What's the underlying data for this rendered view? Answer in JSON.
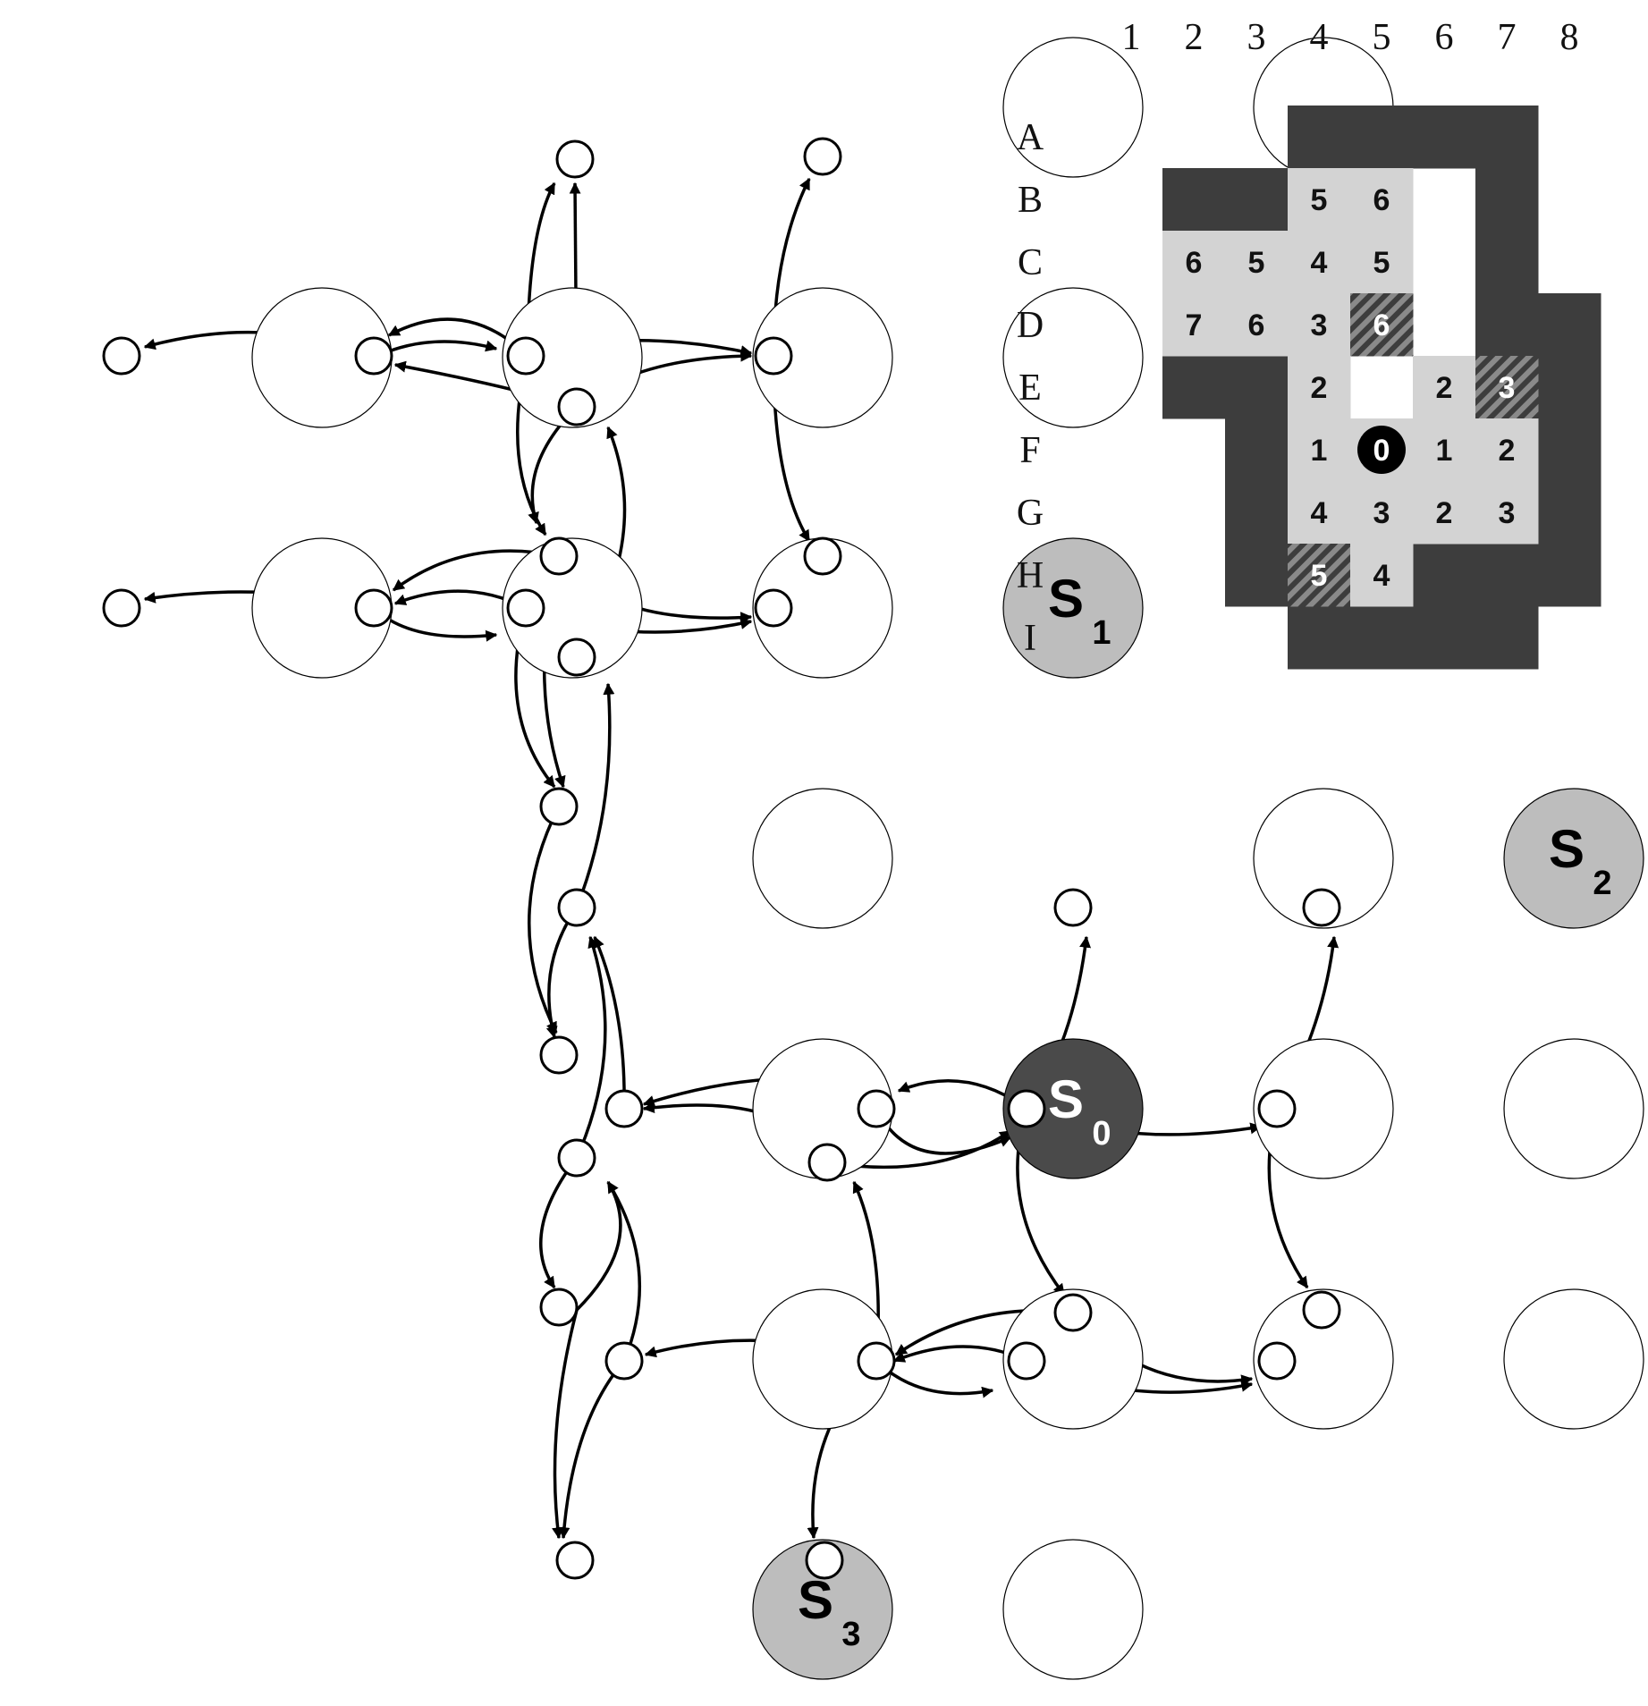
{
  "graph": {
    "states": [
      {
        "row": "A",
        "col": 4,
        "fill": "none"
      },
      {
        "row": "A",
        "col": 5,
        "fill": "none"
      },
      {
        "row": "B",
        "col": 1,
        "fill": "none"
      },
      {
        "row": "B",
        "col": 2,
        "fill": "none"
      },
      {
        "row": "B",
        "col": 3,
        "fill": "none"
      },
      {
        "row": "B",
        "col": 4,
        "fill": "none"
      },
      {
        "row": "C",
        "col": 1,
        "fill": "none"
      },
      {
        "row": "C",
        "col": 2,
        "fill": "none"
      },
      {
        "row": "C",
        "col": 3,
        "fill": "none"
      },
      {
        "row": "C",
        "col": 4,
        "fill": "#bdbdbd",
        "label": "S",
        "sub": "1",
        "labelColor": "#000000"
      },
      {
        "row": "D",
        "col": 3,
        "fill": "none"
      },
      {
        "row": "D",
        "col": 5,
        "fill": "none"
      },
      {
        "row": "D",
        "col": 6,
        "fill": "#bdbdbd",
        "label": "S",
        "sub": "2",
        "labelColor": "#000000"
      },
      {
        "row": "E",
        "col": 3,
        "fill": "none"
      },
      {
        "row": "E",
        "col": 4,
        "fill": "#4a4a4a",
        "label": "S",
        "sub": "0",
        "labelColor": "#ffffff"
      },
      {
        "row": "E",
        "col": 5,
        "fill": "none"
      },
      {
        "row": "E",
        "col": 6,
        "fill": "none"
      },
      {
        "row": "F",
        "col": 3,
        "fill": "none"
      },
      {
        "row": "F",
        "col": 4,
        "fill": "none"
      },
      {
        "row": "F",
        "col": 5,
        "fill": "none"
      },
      {
        "row": "F",
        "col": 6,
        "fill": "none"
      },
      {
        "row": "G",
        "col": 3,
        "fill": "#bdbdbd",
        "label": "S",
        "sub": "3",
        "labelColor": "#000000"
      },
      {
        "row": "G",
        "col": 4,
        "fill": "none"
      }
    ]
  },
  "map": {
    "col_labels": [
      "1",
      "2",
      "3",
      "4",
      "5",
      "6",
      "7",
      "8"
    ],
    "row_labels": [
      "A",
      "B",
      "C",
      "D",
      "E",
      "F",
      "G",
      "H",
      "I"
    ],
    "colors": {
      "wall": "#3d3d3d",
      "floor": "#d3d3d3",
      "text": "#111111"
    },
    "walls": [
      "A4",
      "A5",
      "A6",
      "A7",
      "B2",
      "B3",
      "B4",
      "B7",
      "C2",
      "C7",
      "D2",
      "D7",
      "D8",
      "E2",
      "E3",
      "E4",
      "E6",
      "E8",
      "F3",
      "F8",
      "G3",
      "G8",
      "H3",
      "H6",
      "H7",
      "H8",
      "I4",
      "I5",
      "I6",
      "I7"
    ],
    "cells": [
      {
        "cell": "B4",
        "value": "5"
      },
      {
        "cell": "B5",
        "value": "6"
      },
      {
        "cell": "C2",
        "value": "6"
      },
      {
        "cell": "C3",
        "value": "5"
      },
      {
        "cell": "C4",
        "value": "4"
      },
      {
        "cell": "C5",
        "value": "5"
      },
      {
        "cell": "D2",
        "value": "7"
      },
      {
        "cell": "D3",
        "value": "6"
      },
      {
        "cell": "D4",
        "value": "3"
      },
      {
        "cell": "D5",
        "value": "6",
        "style": "hatched"
      },
      {
        "cell": "E4",
        "value": "2"
      },
      {
        "cell": "E6",
        "value": "2"
      },
      {
        "cell": "E7",
        "value": "3",
        "style": "hatched"
      },
      {
        "cell": "F4",
        "value": "1"
      },
      {
        "cell": "F5",
        "value": "0",
        "style": "agent"
      },
      {
        "cell": "F6",
        "value": "1"
      },
      {
        "cell": "F7",
        "value": "2"
      },
      {
        "cell": "G4",
        "value": "4"
      },
      {
        "cell": "G5",
        "value": "3"
      },
      {
        "cell": "G6",
        "value": "2"
      },
      {
        "cell": "G7",
        "value": "3"
      },
      {
        "cell": "H4",
        "value": "5",
        "style": "hatched"
      },
      {
        "cell": "H5",
        "value": "4"
      }
    ]
  }
}
